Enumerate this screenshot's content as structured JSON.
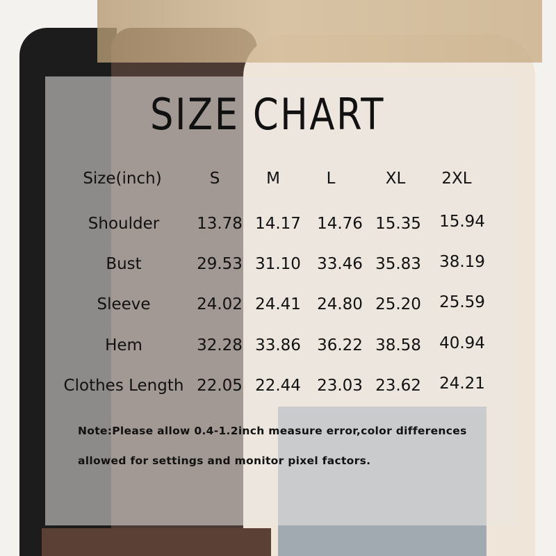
{
  "title": "SIZE CHART",
  "table": {
    "header": [
      "Size(inch)",
      "S",
      "M",
      "L",
      "XL",
      "2XL"
    ],
    "rows": [
      {
        "label": "Shoulder",
        "values": [
          "13.78",
          "14.17",
          "14.76",
          "15.35",
          "15.94"
        ]
      },
      {
        "label": "Bust",
        "values": [
          "29.53",
          "31.10",
          "33.46",
          "35.83",
          "38.19"
        ]
      },
      {
        "label": "Sleeve",
        "values": [
          "24.02",
          "24.41",
          "24.80",
          "25.20",
          "25.59"
        ]
      },
      {
        "label": "Hem",
        "values": [
          "32.28",
          "33.86",
          "36.22",
          "38.58",
          "40.94"
        ]
      },
      {
        "label": "Clothes Length",
        "values": [
          "22.05",
          "22.44",
          "23.03",
          "23.62",
          "24.21"
        ]
      }
    ]
  },
  "note": {
    "line1": "Note:Please allow 0.4-1.2inch measure error,color differences",
    "line2": "allowed for settings and monitor pixel factors."
  },
  "colors": {
    "shirt_black": "#1b1b1b",
    "shirt_brown": "#4a3a33",
    "shirt_cream": "#efe6db",
    "jeans": "#9aa3ad"
  }
}
